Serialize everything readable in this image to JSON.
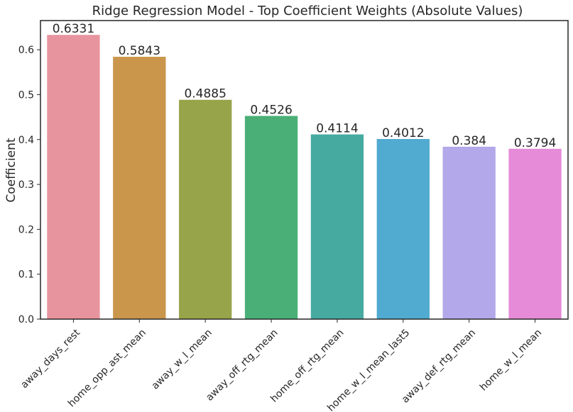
{
  "chart_data": {
    "type": "bar",
    "title": "Ridge Regression Model - Top Coefficient Weights (Absolute Values)",
    "xlabel": "",
    "ylabel": "Coefficient",
    "categories": [
      "away_days_rest",
      "home_opp_ast_mean",
      "away_w_l_mean",
      "away_off_rtg_mean",
      "home_off_rtg_mean",
      "home_w_l_mean_last5",
      "away_def_rtg_mean",
      "home_w_l_mean"
    ],
    "values": [
      0.6331,
      0.5843,
      0.4885,
      0.4526,
      0.4114,
      0.4012,
      0.384,
      0.3794
    ],
    "data_labels": [
      "0.6331",
      "0.5843",
      "0.4885",
      "0.4526",
      "0.4114",
      "0.4012",
      "0.384",
      "0.3794"
    ],
    "colors": [
      "#e8949f",
      "#c9964c",
      "#98a44a",
      "#4aaf77",
      "#47aaa1",
      "#51aad0",
      "#b3a8ea",
      "#e58bd8"
    ],
    "ylim": [
      0,
      0.665
    ],
    "yticks": [
      "0.0",
      "0.1",
      "0.2",
      "0.3",
      "0.4",
      "0.5",
      "0.6"
    ],
    "grid": false,
    "legend": "none"
  }
}
